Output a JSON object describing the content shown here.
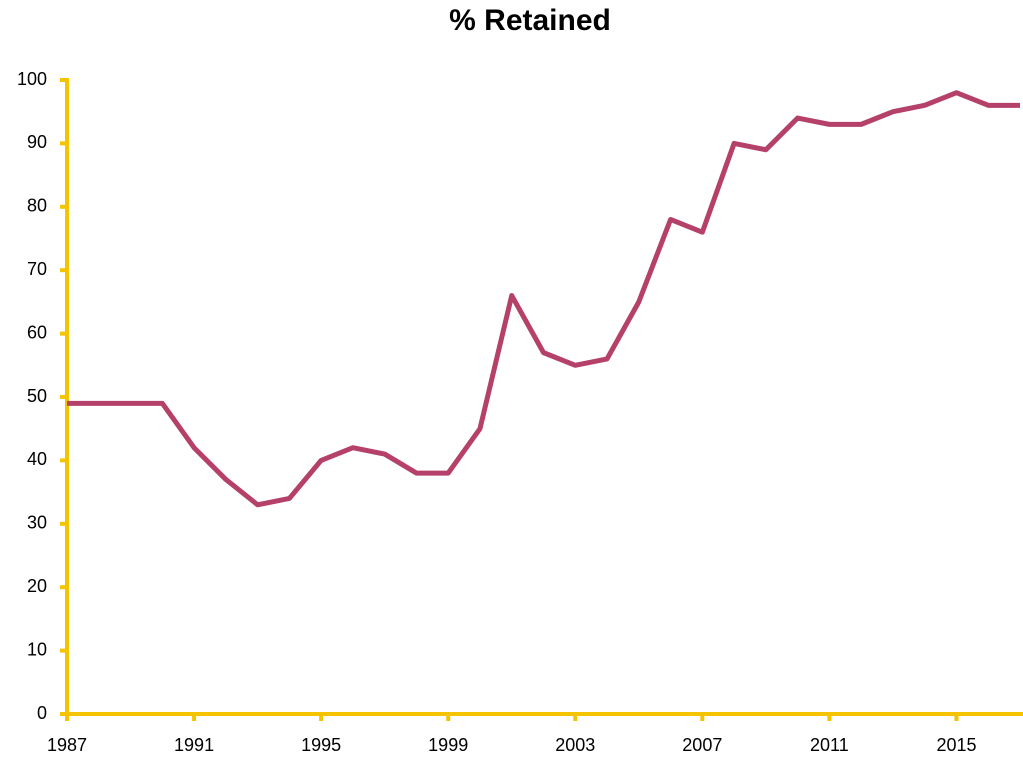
{
  "chart_data": {
    "type": "line",
    "title": "% Retained",
    "x": [
      1987,
      1988,
      1989,
      1990,
      1991,
      1992,
      1993,
      1994,
      1995,
      1996,
      1997,
      1998,
      1999,
      2000,
      2001,
      2002,
      2003,
      2004,
      2005,
      2006,
      2007,
      2008,
      2009,
      2010,
      2011,
      2012,
      2013,
      2014,
      2015,
      2016,
      2017
    ],
    "values": [
      49,
      49,
      49,
      49,
      42,
      37,
      33,
      34,
      40,
      42,
      41,
      38,
      38,
      45,
      66,
      57,
      55,
      56,
      65,
      78,
      76,
      90,
      89,
      94,
      93,
      93,
      95,
      96,
      98,
      96,
      96
    ],
    "color": "#b5406a",
    "axis_color": "#f5c400",
    "xlim": [
      1987,
      2017
    ],
    "xticks": [
      1987,
      1991,
      1995,
      1999,
      2003,
      2007,
      2011,
      2015
    ],
    "ylim": [
      0,
      100
    ],
    "yticks": [
      0,
      10,
      20,
      30,
      40,
      50,
      60,
      70,
      80,
      90,
      100
    ],
    "grid": false
  }
}
